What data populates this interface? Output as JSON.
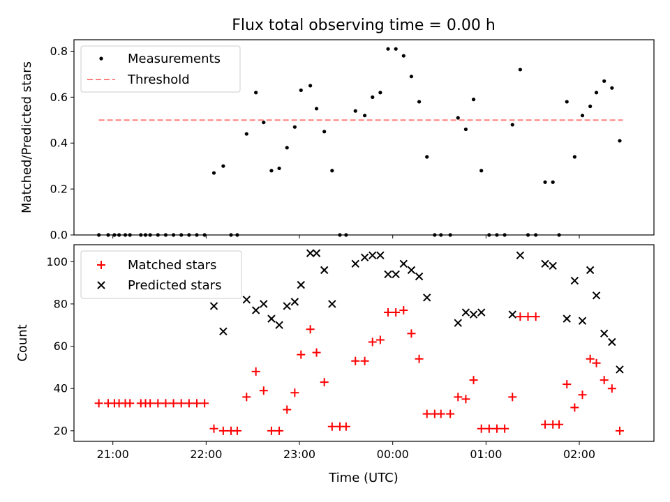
{
  "figure": {
    "title": "Flux total observing time = 0.00 h",
    "xlabel": "Time (UTC)"
  },
  "colors": {
    "measurements": "#000000",
    "threshold": "#ff7f7f",
    "matched": "#ff0000",
    "predicted": "#000000"
  },
  "chart_data": [
    {
      "type": "scatter",
      "ylabel": "Matched/Predicted stars",
      "xlim": [
        "20:35",
        "02:48"
      ],
      "ylim": [
        0,
        0.85
      ],
      "yticks": [
        "0.0",
        "0.2",
        "0.4",
        "0.6",
        "0.8"
      ],
      "legend": {
        "position": "top-left",
        "entries": [
          "Measurements",
          "Threshold"
        ]
      },
      "series": [
        {
          "name": "Measurements",
          "marker": "dot",
          "points": [
            [
              "20:51",
              0.0
            ],
            [
              "20:57",
              0.0
            ],
            [
              "21:01",
              0.0
            ],
            [
              "21:04",
              0.0
            ],
            [
              "21:08",
              0.0
            ],
            [
              "21:11",
              0.0
            ],
            [
              "21:18",
              0.0
            ],
            [
              "21:21",
              0.0
            ],
            [
              "21:24",
              0.0
            ],
            [
              "21:29",
              0.0
            ],
            [
              "21:34",
              0.0
            ],
            [
              "21:39",
              0.0
            ],
            [
              "21:44",
              0.0
            ],
            [
              "21:49",
              0.0
            ],
            [
              "21:54",
              0.0
            ],
            [
              "21:59",
              0.0
            ],
            [
              "22:05",
              0.27
            ],
            [
              "22:11",
              0.3
            ],
            [
              "22:16",
              0.0
            ],
            [
              "22:20",
              0.0
            ],
            [
              "22:26",
              0.44
            ],
            [
              "22:32",
              0.62
            ],
            [
              "22:37",
              0.49
            ],
            [
              "22:42",
              0.28
            ],
            [
              "22:47",
              0.29
            ],
            [
              "22:52",
              0.38
            ],
            [
              "22:57",
              0.47
            ],
            [
              "23:01",
              0.63
            ],
            [
              "23:07",
              0.65
            ],
            [
              "23:11",
              0.55
            ],
            [
              "23:16",
              0.45
            ],
            [
              "23:21",
              0.28
            ],
            [
              "23:26",
              0.0
            ],
            [
              "23:30",
              0.0
            ],
            [
              "23:36",
              0.54
            ],
            [
              "23:42",
              0.52
            ],
            [
              "23:47",
              0.6
            ],
            [
              "23:52",
              0.62
            ],
            [
              "23:57",
              0.81
            ],
            [
              "00:02",
              0.81
            ],
            [
              "00:07",
              0.78
            ],
            [
              "00:12",
              0.69
            ],
            [
              "00:17",
              0.58
            ],
            [
              "00:22",
              0.34
            ],
            [
              "00:27",
              0.0
            ],
            [
              "00:31",
              0.0
            ],
            [
              "00:37",
              0.0
            ],
            [
              "00:42",
              0.51
            ],
            [
              "00:47",
              0.46
            ],
            [
              "00:52",
              0.59
            ],
            [
              "00:57",
              0.28
            ],
            [
              "01:02",
              0.0
            ],
            [
              "01:07",
              0.0
            ],
            [
              "01:12",
              0.0
            ],
            [
              "01:17",
              0.48
            ],
            [
              "01:22",
              0.72
            ],
            [
              "01:27",
              0.0
            ],
            [
              "01:32",
              0.0
            ],
            [
              "01:38",
              0.23
            ],
            [
              "01:43",
              0.23
            ],
            [
              "01:47",
              0.0
            ],
            [
              "01:52",
              0.58
            ],
            [
              "01:57",
              0.34
            ],
            [
              "02:02",
              0.52
            ],
            [
              "02:07",
              0.56
            ],
            [
              "02:11",
              0.62
            ],
            [
              "02:16",
              0.67
            ],
            [
              "02:21",
              0.64
            ],
            [
              "02:26",
              0.41
            ]
          ]
        },
        {
          "name": "Threshold",
          "style": "dashed",
          "line": [
            [
              "20:51",
              0.5
            ],
            [
              "02:28",
              0.5
            ]
          ]
        }
      ]
    },
    {
      "type": "scatter",
      "ylabel": "Count",
      "xlim": [
        "20:35",
        "02:48"
      ],
      "ylim": [
        15,
        108
      ],
      "yticks": [
        "20",
        "40",
        "60",
        "80",
        "100"
      ],
      "xticks": [
        "21:00",
        "22:00",
        "23:00",
        "00:00",
        "01:00",
        "02:00"
      ],
      "legend": {
        "position": "top-left",
        "entries": [
          "Matched stars",
          "Predicted stars"
        ]
      },
      "series": [
        {
          "name": "Matched stars",
          "marker": "plus",
          "points": [
            [
              "20:51",
              33
            ],
            [
              "20:57",
              33
            ],
            [
              "21:01",
              33
            ],
            [
              "21:04",
              33
            ],
            [
              "21:08",
              33
            ],
            [
              "21:11",
              33
            ],
            [
              "21:18",
              33
            ],
            [
              "21:21",
              33
            ],
            [
              "21:24",
              33
            ],
            [
              "21:29",
              33
            ],
            [
              "21:34",
              33
            ],
            [
              "21:39",
              33
            ],
            [
              "21:44",
              33
            ],
            [
              "21:49",
              33
            ],
            [
              "21:54",
              33
            ],
            [
              "21:59",
              33
            ],
            [
              "22:05",
              21
            ],
            [
              "22:11",
              20
            ],
            [
              "22:16",
              20
            ],
            [
              "22:20",
              20
            ],
            [
              "22:26",
              36
            ],
            [
              "22:32",
              48
            ],
            [
              "22:37",
              39
            ],
            [
              "22:42",
              20
            ],
            [
              "22:47",
              20
            ],
            [
              "22:52",
              30
            ],
            [
              "22:57",
              38
            ],
            [
              "23:01",
              56
            ],
            [
              "23:07",
              68
            ],
            [
              "23:11",
              57
            ],
            [
              "23:16",
              43
            ],
            [
              "23:21",
              22
            ],
            [
              "23:26",
              22
            ],
            [
              "23:30",
              22
            ],
            [
              "23:36",
              53
            ],
            [
              "23:42",
              53
            ],
            [
              "23:47",
              62
            ],
            [
              "23:52",
              63
            ],
            [
              "23:57",
              76
            ],
            [
              "00:02",
              76
            ],
            [
              "00:07",
              77
            ],
            [
              "00:12",
              66
            ],
            [
              "00:17",
              54
            ],
            [
              "00:22",
              28
            ],
            [
              "00:27",
              28
            ],
            [
              "00:31",
              28
            ],
            [
              "00:37",
              28
            ],
            [
              "00:42",
              36
            ],
            [
              "00:47",
              35
            ],
            [
              "00:52",
              44
            ],
            [
              "00:57",
              21
            ],
            [
              "01:02",
              21
            ],
            [
              "01:07",
              21
            ],
            [
              "01:12",
              21
            ],
            [
              "01:17",
              36
            ],
            [
              "01:22",
              74
            ],
            [
              "01:27",
              74
            ],
            [
              "01:32",
              74
            ],
            [
              "01:38",
              23
            ],
            [
              "01:43",
              23
            ],
            [
              "01:47",
              23
            ],
            [
              "01:52",
              42
            ],
            [
              "01:57",
              31
            ],
            [
              "02:02",
              37
            ],
            [
              "02:07",
              54
            ],
            [
              "02:11",
              52
            ],
            [
              "02:16",
              44
            ],
            [
              "02:21",
              40
            ],
            [
              "02:26",
              20
            ]
          ]
        },
        {
          "name": "Predicted stars",
          "marker": "x",
          "points": [
            [
              "22:05",
              79
            ],
            [
              "22:11",
              67
            ],
            [
              "22:26",
              82
            ],
            [
              "22:32",
              77
            ],
            [
              "22:37",
              80
            ],
            [
              "22:42",
              73
            ],
            [
              "22:47",
              70
            ],
            [
              "22:52",
              79
            ],
            [
              "22:57",
              81
            ],
            [
              "23:01",
              89
            ],
            [
              "23:07",
              104
            ],
            [
              "23:11",
              104
            ],
            [
              "23:16",
              96
            ],
            [
              "23:21",
              80
            ],
            [
              "23:36",
              99
            ],
            [
              "23:42",
              102
            ],
            [
              "23:47",
              103
            ],
            [
              "23:52",
              103
            ],
            [
              "23:57",
              94
            ],
            [
              "00:02",
              94
            ],
            [
              "00:07",
              99
            ],
            [
              "00:12",
              96
            ],
            [
              "00:17",
              93
            ],
            [
              "00:22",
              83
            ],
            [
              "00:42",
              71
            ],
            [
              "00:47",
              76
            ],
            [
              "00:52",
              75
            ],
            [
              "00:57",
              76
            ],
            [
              "01:17",
              75
            ],
            [
              "01:22",
              103
            ],
            [
              "01:38",
              99
            ],
            [
              "01:43",
              98
            ],
            [
              "01:52",
              73
            ],
            [
              "01:57",
              91
            ],
            [
              "02:02",
              72
            ],
            [
              "02:07",
              96
            ],
            [
              "02:11",
              84
            ],
            [
              "02:16",
              66
            ],
            [
              "02:21",
              62
            ],
            [
              "02:26",
              49
            ]
          ]
        }
      ]
    }
  ]
}
